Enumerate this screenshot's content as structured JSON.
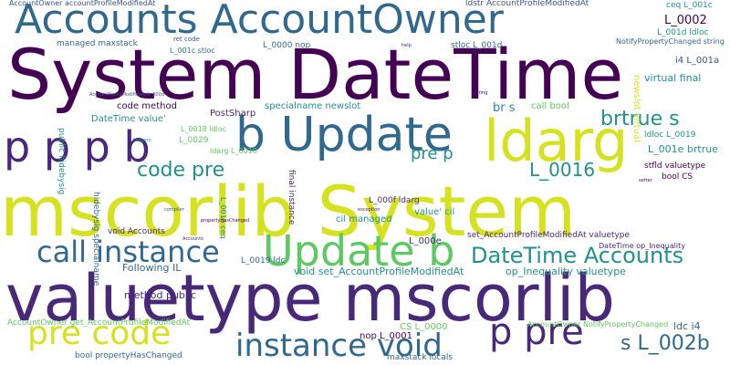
{
  "word_cloud": {
    "background": "#ffffff",
    "palette": [
      "#440154",
      "#3b528b",
      "#21918c",
      "#5ec962",
      "#d6e21f",
      "#31688e",
      "#35b779",
      "#482878"
    ],
    "words": {
      "w01": "System DateTime",
      "w02": "mscorlib System",
      "w03": "valuetype mscorlib",
      "w04": "Accounts AccountOwner",
      "w05": "Update b",
      "w06": "ldarg",
      "w07": "p p p b",
      "w08": "b Update",
      "w09": "call instance",
      "w10": "instance void",
      "w11": "pre code",
      "w12": "p pre",
      "w13": "DateTime Accounts",
      "w14": "code pre",
      "w15": "brtrue s",
      "w16": "s L_002b",
      "w17": "L_0016",
      "w18": "pre p",
      "w19": "AccountOwner accountProfileModifiedAt",
      "w20": "ldstr AccountProfileModifiedAt",
      "w21": "L_0002",
      "w22": "ceq L_001c",
      "w23": "L_001d ldloc",
      "w24": "i4 L_001a",
      "w25": "managed maxstack",
      "w26": "ret code",
      "w27": "L_0000 nop",
      "w28": "L_001c stloc",
      "w29": "stloc L_001d",
      "w30": "virtual final",
      "w31": "NotifyPropertyChanged string",
      "w32": "code method",
      "w33": "DateTime value'",
      "w34": "PostSharp",
      "w35": "specialname newslot",
      "w36": "L_0029",
      "w37": "L_0018 ldloc",
      "w38": "ldarg L_0010",
      "w39": "br s",
      "w40": "call bool",
      "w41": "L_001e brtrue",
      "w42": "ldloc L_0019",
      "w43": "stfld valuetype",
      "w44": "bool CS",
      "w45": "cil managed",
      "w46": "L_000f ldarg",
      "w47": "value' cil",
      "w48": "L_000e",
      "w49": "void Accounts",
      "w50": "set_AccountProfileModifiedAt valuetype",
      "w51": "DateTime op_Inequality",
      "w52": "void set_AccountProfileModifiedAt",
      "w53": "op_Inequality valuetype",
      "w54": "L_0019 ldc",
      "w55": "Following IL",
      "w56": "method public",
      "w57": "AccountOwner get_AccountProfileModifiedAt",
      "w58": "CS L_0000",
      "w59": "AccountOwner NotifyPropertyChanged",
      "w60": "nop L_0001",
      "w61": "ldc i4",
      "w62": "bool propertyHasChanged",
      "w63": "maxstack locals",
      "w64": "public hidebysig",
      "w65": "hidebysig specialname",
      "w66": "final instance",
      "w67": "newslot virtual",
      "w68": "L_001a ceq",
      "w69": "AccountProfileModifiedAt L_000d",
      "w70": "propertyHasChanged",
      "w71": "Accounts",
      "w72": "exception",
      "w73": "compiler",
      "w74": "triggers",
      "w75": "help",
      "w76": "string",
      "w77": "setter"
    }
  }
}
